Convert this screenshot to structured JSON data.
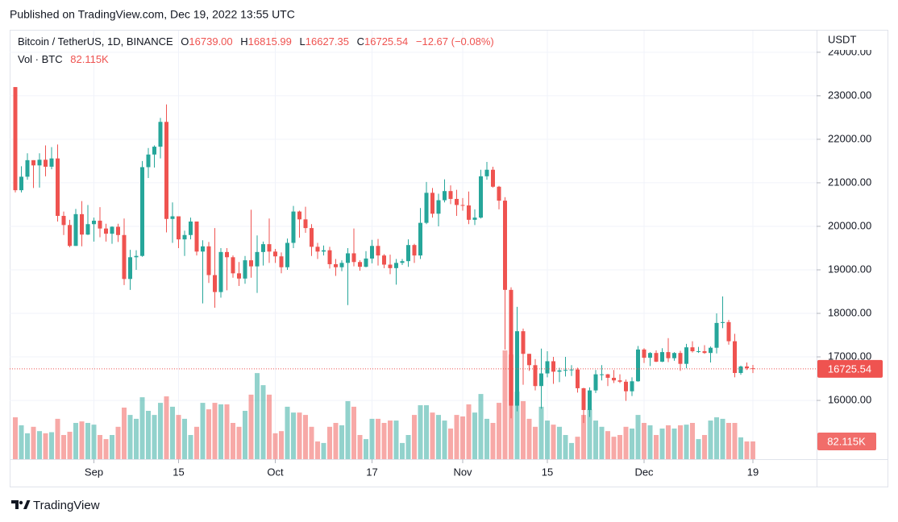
{
  "published": "Published on TradingView.com, Dec 19, 2022 13:55 UTC",
  "legend": {
    "symbol": "Bitcoin / TetherUS, 1D, BINANCE",
    "items": [
      {
        "key": "O",
        "value": "16739.00"
      },
      {
        "key": "H",
        "value": "16815.99"
      },
      {
        "key": "L",
        "value": "16627.35"
      },
      {
        "key": "C",
        "value": "16725.54"
      }
    ],
    "change": "−12.67 (−0.08%)",
    "volume_name": "Vol · BTC",
    "volume_value": "82.115K"
  },
  "brand": "TradingView",
  "chart_data": {
    "type": "candlestick",
    "currency": "USDT",
    "up_color": "#26a69a",
    "down_color": "#ef5350",
    "grid": true,
    "x": [
      "2022-08-19",
      "2022-08-20",
      "2022-08-21",
      "2022-08-22",
      "2022-08-23",
      "2022-08-24",
      "2022-08-25",
      "2022-08-26",
      "2022-08-27",
      "2022-08-28",
      "2022-08-29",
      "2022-08-30",
      "2022-08-31",
      "2022-09-01",
      "2022-09-02",
      "2022-09-03",
      "2022-09-04",
      "2022-09-05",
      "2022-09-06",
      "2022-09-07",
      "2022-09-08",
      "2022-09-09",
      "2022-09-10",
      "2022-09-11",
      "2022-09-12",
      "2022-09-13",
      "2022-09-14",
      "2022-09-15",
      "2022-09-16",
      "2022-09-17",
      "2022-09-18",
      "2022-09-19",
      "2022-09-20",
      "2022-09-21",
      "2022-09-22",
      "2022-09-23",
      "2022-09-24",
      "2022-09-25",
      "2022-09-26",
      "2022-09-27",
      "2022-09-28",
      "2022-09-29",
      "2022-09-30",
      "2022-10-01",
      "2022-10-02",
      "2022-10-03",
      "2022-10-04",
      "2022-10-05",
      "2022-10-06",
      "2022-10-07",
      "2022-10-08",
      "2022-10-09",
      "2022-10-10",
      "2022-10-11",
      "2022-10-12",
      "2022-10-13",
      "2022-10-14",
      "2022-10-15",
      "2022-10-16",
      "2022-10-17",
      "2022-10-18",
      "2022-10-19",
      "2022-10-20",
      "2022-10-21",
      "2022-10-22",
      "2022-10-23",
      "2022-10-24",
      "2022-10-25",
      "2022-10-26",
      "2022-10-27",
      "2022-10-28",
      "2022-10-29",
      "2022-10-30",
      "2022-10-31",
      "2022-11-01",
      "2022-11-02",
      "2022-11-03",
      "2022-11-04",
      "2022-11-05",
      "2022-11-06",
      "2022-11-07",
      "2022-11-08",
      "2022-11-09",
      "2022-11-10",
      "2022-11-11",
      "2022-11-12",
      "2022-11-13",
      "2022-11-14",
      "2022-11-15",
      "2022-11-16",
      "2022-11-17",
      "2022-11-18",
      "2022-11-19",
      "2022-11-20",
      "2022-11-21",
      "2022-11-22",
      "2022-11-23",
      "2022-11-24",
      "2022-11-25",
      "2022-11-26",
      "2022-11-27",
      "2022-11-28",
      "2022-11-29",
      "2022-11-30",
      "2022-12-01",
      "2022-12-02",
      "2022-12-03",
      "2022-12-04",
      "2022-12-05",
      "2022-12-06",
      "2022-12-07",
      "2022-12-08",
      "2022-12-09",
      "2022-12-10",
      "2022-12-11",
      "2022-12-12",
      "2022-12-13",
      "2022-12-14",
      "2022-12-15",
      "2022-12-16",
      "2022-12-17",
      "2022-12-18",
      "2022-12-19"
    ],
    "open": [
      23200,
      20830,
      21140,
      21520,
      21400,
      21530,
      21370,
      21560,
      20240,
      20030,
      19550,
      20280,
      19810,
      20050,
      20130,
      19950,
      19830,
      19990,
      19800,
      18790,
      19290,
      19320,
      21360,
      21650,
      21830,
      22400,
      20170,
      20230,
      19700,
      19800,
      20110,
      19420,
      19540,
      18880,
      18490,
      19410,
      19290,
      18920,
      18800,
      19220,
      19080,
      19410,
      19590,
      19420,
      19310,
      19060,
      19620,
      20340,
      20160,
      19960,
      19530,
      19420,
      19450,
      19130,
      19060,
      19160,
      19380,
      19180,
      19070,
      19260,
      19550,
      19330,
      19120,
      19040,
      19160,
      19200,
      19570,
      19330,
      20080,
      20770,
      20290,
      20600,
      20810,
      20630,
      20490,
      20480,
      20150,
      20200,
      21150,
      21300,
      20910,
      20590,
      18540,
      15880,
      17590,
      17070,
      16810,
      16330,
      16620,
      16900,
      16660,
      16690,
      16700,
      16710,
      16280,
      15780,
      16230,
      16600,
      16600,
      16520,
      16460,
      16430,
      16210,
      16440,
      17170,
      16980,
      17090,
      16890,
      17110,
      16970,
      17090,
      16840,
      17220,
      17130,
      17130,
      17090,
      17210,
      17780,
      17800,
      17360,
      16630,
      16780,
      16739
    ],
    "high": [
      23200,
      21380,
      21680,
      21520,
      21680,
      21860,
      21820,
      21880,
      20340,
      20150,
      20400,
      20580,
      20490,
      20200,
      20440,
      20060,
      20000,
      20060,
      20180,
      19460,
      19450,
      21500,
      21800,
      21860,
      22490,
      22800,
      20550,
      20200,
      19900,
      20200,
      20100,
      19680,
      19640,
      19960,
      19500,
      19500,
      19330,
      19180,
      19320,
      20380,
      19790,
      19650,
      20180,
      19480,
      19400,
      19720,
      20470,
      20360,
      20450,
      20050,
      19620,
      19560,
      19530,
      19250,
      19220,
      19500,
      19950,
      19220,
      19430,
      19690,
      19710,
      19360,
      19350,
      19250,
      19250,
      19700,
      19600,
      20420,
      21020,
      20880,
      20750,
      21080,
      20940,
      20840,
      20650,
      20800,
      20390,
      21300,
      21480,
      21370,
      20930,
      20670,
      18600,
      18150,
      17650,
      17070,
      16950,
      17190,
      17130,
      17000,
      16750,
      17000,
      16810,
      16750,
      16290,
      16300,
      16700,
      16810,
      16610,
      16700,
      16600,
      16480,
      16530,
      17250,
      17200,
      17110,
      17150,
      17200,
      17430,
      17110,
      17140,
      17300,
      17360,
      17230,
      17270,
      17240,
      18000,
      18390,
      17850,
      17530,
      16800,
      16870,
      16815.99
    ],
    "low": [
      20780,
      20780,
      21070,
      20880,
      20890,
      21150,
      21310,
      20110,
      19800,
      19520,
      19550,
      19540,
      19800,
      19650,
      19750,
      19650,
      19600,
      19640,
      18650,
      18540,
      19000,
      19300,
      21110,
      21350,
      21560,
      19860,
      19620,
      19500,
      19320,
      19700,
      19330,
      18230,
      18700,
      18130,
      18360,
      18530,
      18820,
      18630,
      18680,
      18820,
      18470,
      19100,
      19160,
      19160,
      18920,
      19000,
      19500,
      19740,
      19850,
      19320,
      19250,
      19330,
      19030,
      18860,
      18970,
      18190,
      19080,
      18980,
      19060,
      19150,
      19100,
      19040,
      18900,
      18660,
      19110,
      19070,
      19160,
      19250,
      20050,
      20200,
      20000,
      20550,
      20510,
      20240,
      20360,
      20050,
      20030,
      20180,
      21070,
      20890,
      20390,
      17170,
      15590,
      15750,
      16360,
      16680,
      16230,
      15810,
      16530,
      16380,
      16420,
      16550,
      16560,
      16180,
      15480,
      15620,
      16170,
      16460,
      16330,
      16400,
      16400,
      15990,
      16100,
      16430,
      16860,
      16790,
      16880,
      16880,
      16880,
      16910,
      16680,
      16740,
      17100,
      17090,
      17070,
      16870,
      17080,
      17660,
      17280,
      16530,
      16590,
      16700,
      16627.35
    ],
    "close": [
      20830,
      21140,
      21520,
      21400,
      21530,
      21370,
      21560,
      20240,
      20030,
      19550,
      20280,
      19810,
      20050,
      20130,
      19950,
      19830,
      19990,
      19800,
      18790,
      19290,
      19320,
      21360,
      21650,
      21830,
      22400,
      20170,
      20230,
      19700,
      19800,
      20110,
      19420,
      19540,
      18880,
      18490,
      19410,
      19290,
      18920,
      18800,
      19220,
      19080,
      19410,
      19590,
      19420,
      19310,
      19060,
      19620,
      20340,
      20160,
      19960,
      19530,
      19420,
      19450,
      19130,
      19060,
      19160,
      19380,
      19180,
      19070,
      19260,
      19550,
      19330,
      19120,
      19040,
      19160,
      19200,
      19570,
      19330,
      20080,
      20770,
      20290,
      20600,
      20810,
      20630,
      20490,
      20480,
      20150,
      20200,
      21150,
      21300,
      20910,
      20590,
      18540,
      15880,
      17590,
      17070,
      16810,
      16330,
      16620,
      16900,
      16660,
      16690,
      16700,
      16710,
      16280,
      15780,
      16230,
      16600,
      16600,
      16520,
      16460,
      16430,
      16210,
      16440,
      17170,
      16980,
      17090,
      16890,
      17110,
      16970,
      17090,
      16840,
      17220,
      17130,
      17130,
      17090,
      17210,
      17780,
      17800,
      17360,
      16630,
      16780,
      16740,
      16725.54
    ],
    "volume": [
      194,
      157,
      120,
      150,
      130,
      120,
      125,
      187,
      112,
      127,
      168,
      175,
      168,
      160,
      112,
      93,
      112,
      150,
      239,
      205,
      187,
      287,
      224,
      205,
      261,
      291,
      243,
      205,
      187,
      112,
      150,
      261,
      231,
      261,
      254,
      254,
      168,
      150,
      224,
      299,
      399,
      343,
      299,
      120,
      130,
      243,
      216,
      216,
      205,
      150,
      82,
      75,
      150,
      168,
      157,
      269,
      243,
      112,
      93,
      187,
      187,
      168,
      179,
      179,
      75,
      112,
      205,
      250,
      250,
      216,
      205,
      179,
      142,
      205,
      198,
      254,
      216,
      302,
      187,
      168,
      261,
      504,
      485,
      313,
      269,
      187,
      150,
      243,
      179,
      160,
      150,
      112,
      75,
      104,
      205,
      231,
      179,
      150,
      130,
      104,
      112,
      150,
      142,
      205,
      168,
      157,
      112,
      142,
      157,
      142,
      157,
      160,
      168,
      93,
      112,
      179,
      194,
      187,
      168,
      168,
      101,
      82,
      82.115
    ],
    "ylim": [
      14650,
      24460
    ],
    "yticks": [
      {
        "value": 16000,
        "label": "16000.00"
      },
      {
        "value": 17000,
        "label": "17000.00"
      },
      {
        "value": 18000,
        "label": "18000.00"
      },
      {
        "value": 19000,
        "label": "19000.00"
      },
      {
        "value": 20000,
        "label": "20000.00"
      },
      {
        "value": 21000,
        "label": "21000.00"
      },
      {
        "value": 22000,
        "label": "22000.00"
      },
      {
        "value": 23000,
        "label": "23000.00"
      },
      {
        "value": 24000,
        "label": "24000.00"
      }
    ],
    "volume_ylim": [
      0,
      560
    ],
    "xticks": [
      {
        "value": "2022-09-01",
        "label": "Sep"
      },
      {
        "value": "2022-09-15",
        "label": "15"
      },
      {
        "value": "2022-10-01",
        "label": "Oct"
      },
      {
        "value": "2022-10-17",
        "label": "17"
      },
      {
        "value": "2022-11-01",
        "label": "Nov"
      },
      {
        "value": "2022-11-15",
        "label": "15"
      },
      {
        "value": "2022-12-01",
        "label": "Dec"
      },
      {
        "value": "2022-12-19",
        "label": "19"
      }
    ]
  }
}
